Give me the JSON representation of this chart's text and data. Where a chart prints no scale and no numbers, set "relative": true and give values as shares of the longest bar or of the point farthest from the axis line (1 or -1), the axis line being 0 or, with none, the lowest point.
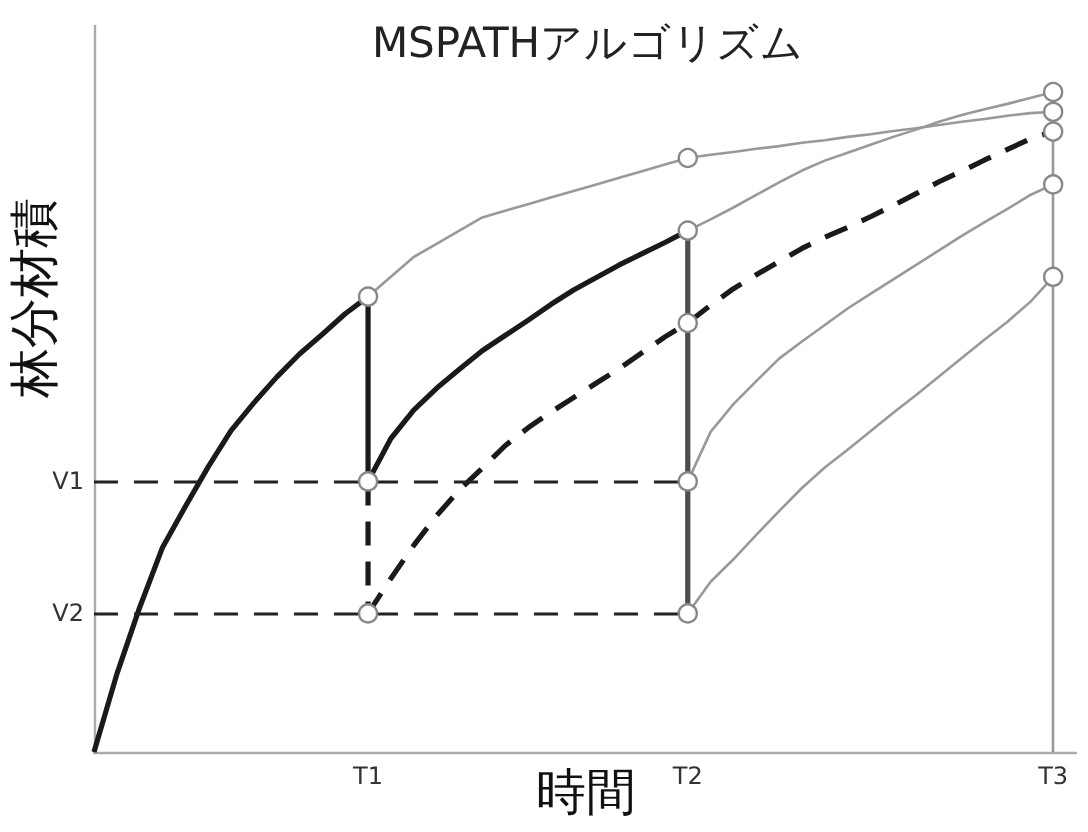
{
  "chart_data": {
    "type": "line",
    "title": "MSPATHアルゴリズム",
    "xlabel": "時間",
    "ylabel": "林分材積",
    "relative": true,
    "categories": [
      null,
      null,
      null,
      null,
      null,
      null,
      null,
      null,
      null,
      null,
      null,
      null,
      "T1",
      null,
      null,
      null,
      null,
      null,
      null,
      null,
      null,
      null,
      null,
      null,
      null,
      null,
      "T2",
      null,
      null,
      null,
      null,
      null,
      null,
      null,
      null,
      null,
      null,
      null,
      null,
      null,
      null,
      null,
      "T3",
      null
    ],
    "ref_lines": [
      {
        "axis": "y",
        "value": 0.41,
        "label": "V1",
        "color": "#222222",
        "line_style": "dashed"
      },
      {
        "axis": "y",
        "value": 0.21,
        "label": "V2",
        "color": "#222222",
        "line_style": "dashed"
      },
      {
        "axis": "x",
        "value": "T3",
        "color": "#999999",
        "line_style": "solid"
      }
    ],
    "series": [
      {
        "color": "#1a1a1a",
        "values": [
          0,
          0.118,
          0.219,
          0.31,
          0.372,
          0.432,
          0.487,
          0.529,
          0.568,
          0.603,
          0.633,
          0.664,
          0.69,
          null,
          null,
          null,
          null,
          null,
          null,
          null,
          null,
          null,
          null,
          null,
          null,
          null,
          null,
          null,
          null,
          null,
          null,
          null,
          null,
          null,
          null,
          null,
          null,
          null,
          null,
          null,
          null,
          null,
          null,
          null
        ]
      },
      {
        "color": "#1a1a1a",
        "x": [
          "T1",
          "T1"
        ],
        "values": [
          0.69,
          0.41
        ]
      },
      {
        "color": "#1a1a1a",
        "values": [
          null,
          null,
          null,
          null,
          null,
          null,
          null,
          null,
          null,
          null,
          null,
          null,
          0.41,
          0.475,
          0.518,
          0.551,
          0.58,
          0.608,
          0.631,
          0.654,
          0.678,
          0.7,
          0.719,
          0.738,
          0.755,
          0.772,
          0.79,
          null,
          null,
          null,
          null,
          null,
          null,
          null,
          null,
          null,
          null,
          null,
          null,
          null,
          null,
          null,
          null,
          null
        ]
      },
      {
        "color": "#4d4d4d",
        "x": [
          "T2",
          "T2"
        ],
        "values": [
          0.79,
          0.21
        ]
      },
      {
        "color": "#1a1a1a",
        "line_style": "dashed",
        "x": [
          "T1",
          "T1"
        ],
        "values": [
          0.41,
          0.21
        ]
      },
      {
        "color": "#1a1a1a",
        "line_style": "dashed",
        "values": [
          null,
          null,
          null,
          null,
          null,
          null,
          null,
          null,
          null,
          null,
          null,
          null,
          0.21,
          0.263,
          0.313,
          0.358,
          0.397,
          0.43,
          0.464,
          0.491,
          0.515,
          0.537,
          0.559,
          0.581,
          0.605,
          0.629,
          0.65,
          0.677,
          0.702,
          0.723,
          0.743,
          0.763,
          0.78,
          0.795,
          0.811,
          0.828,
          0.846,
          0.864,
          0.88,
          0.897,
          0.913,
          0.929,
          0.94,
          null
        ]
      },
      {
        "color": "#999999",
        "values": [
          null,
          null,
          null,
          null,
          null,
          null,
          null,
          null,
          null,
          null,
          null,
          null,
          0.69,
          0.72,
          0.75,
          0.77,
          0.79,
          0.81,
          0.82,
          0.83,
          0.84,
          0.85,
          0.86,
          0.87,
          0.88,
          0.89,
          0.9,
          0.905,
          0.909,
          0.914,
          0.918,
          0.923,
          0.927,
          0.932,
          0.936,
          0.941,
          0.945,
          0.95,
          0.955,
          0.959,
          0.964,
          0.968,
          0.97,
          null
        ]
      },
      {
        "color": "#999999",
        "values": [
          null,
          null,
          null,
          null,
          null,
          null,
          null,
          null,
          null,
          null,
          null,
          null,
          null,
          null,
          null,
          null,
          null,
          null,
          null,
          null,
          null,
          null,
          null,
          null,
          null,
          null,
          0.79,
          0.807,
          0.825,
          0.844,
          0.863,
          0.881,
          0.896,
          0.908,
          0.92,
          0.932,
          0.943,
          0.955,
          0.965,
          0.974,
          0.982,
          0.991,
          1.0,
          null
        ]
      },
      {
        "color": "#999999",
        "values": [
          null,
          null,
          null,
          null,
          null,
          null,
          null,
          null,
          null,
          null,
          null,
          null,
          null,
          null,
          null,
          null,
          null,
          null,
          null,
          null,
          null,
          null,
          null,
          null,
          null,
          null,
          0.41,
          0.485,
          0.527,
          0.562,
          0.596,
          0.622,
          0.647,
          0.672,
          0.694,
          0.716,
          0.738,
          0.76,
          0.782,
          0.803,
          0.823,
          0.844,
          0.86,
          null
        ]
      },
      {
        "color": "#999999",
        "values": [
          null,
          null,
          null,
          null,
          null,
          null,
          null,
          null,
          null,
          null,
          null,
          null,
          null,
          null,
          null,
          null,
          null,
          null,
          null,
          null,
          null,
          null,
          null,
          null,
          null,
          null,
          0.21,
          0.258,
          0.292,
          0.329,
          0.365,
          0.4,
          0.431,
          0.458,
          0.486,
          0.514,
          0.541,
          0.569,
          0.597,
          0.625,
          0.652,
          0.682,
          0.72,
          null
        ]
      },
      {
        "type": "scatter",
        "marker": "circle",
        "color": "#888888",
        "x": [
          "T1",
          "T1",
          "T1",
          "T2",
          "T2",
          "T2",
          "T2",
          "T2",
          "T3",
          "T3",
          "T3",
          "T3",
          "T3"
        ],
        "values": [
          0.69,
          0.41,
          0.21,
          0.9,
          0.79,
          0.65,
          0.41,
          0.21,
          1.0,
          0.97,
          0.94,
          0.86,
          0.72
        ]
      }
    ]
  }
}
